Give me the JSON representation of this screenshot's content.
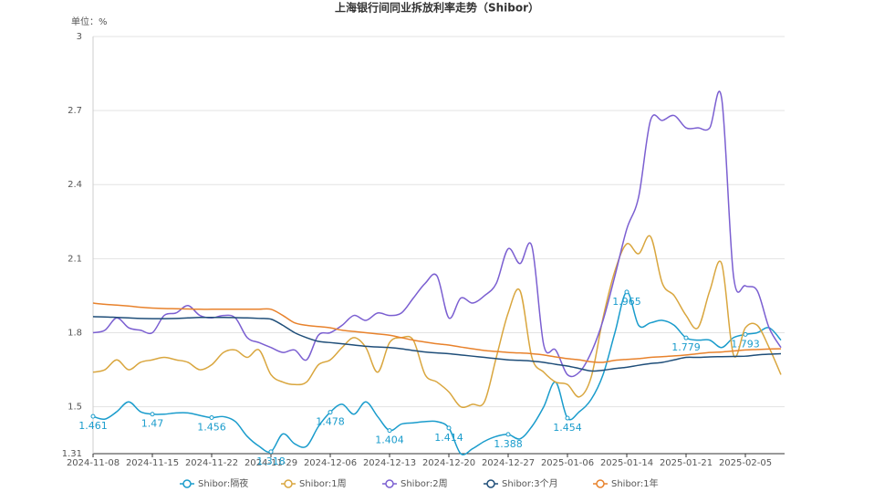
{
  "chart_data": {
    "type": "line",
    "title": "上海银行间同业拆放利率走势（Shibor）",
    "y_label": "单位：%",
    "categories": [
      "2024-11-08",
      null,
      null,
      null,
      null,
      "2024-11-15",
      null,
      null,
      null,
      null,
      "2024-11-22",
      null,
      null,
      null,
      null,
      "2024-11-29",
      null,
      null,
      null,
      null,
      "2024-12-06",
      null,
      null,
      null,
      null,
      "2024-12-13",
      null,
      null,
      null,
      null,
      "2024-12-20",
      null,
      null,
      null,
      null,
      "2024-12-27",
      null,
      null,
      null,
      null,
      "2025-01-06",
      null,
      null,
      null,
      null,
      "2025-01-14",
      null,
      null,
      null,
      null,
      "2025-01-21",
      null,
      null,
      null,
      null,
      "2025-02-05",
      null,
      null,
      null
    ],
    "ylim": [
      1.31,
      3
    ],
    "yticks": [
      1.31,
      1.5,
      1.8,
      2.1,
      2.4,
      2.7,
      3
    ],
    "grid": true,
    "legend": "bottom",
    "series": [
      {
        "name": "Shibor:隔夜",
        "color": "#1a9ccc",
        "label_interval": 5,
        "values": [
          1.461,
          1.45,
          1.48,
          1.52,
          1.48,
          1.47,
          1.47,
          1.475,
          1.475,
          1.465,
          1.456,
          1.46,
          1.44,
          1.38,
          1.34,
          1.318,
          1.39,
          1.35,
          1.34,
          1.42,
          1.478,
          1.51,
          1.47,
          1.52,
          1.46,
          1.404,
          1.43,
          1.435,
          1.44,
          1.44,
          1.414,
          1.31,
          1.33,
          1.36,
          1.38,
          1.388,
          1.37,
          1.42,
          1.5,
          1.6,
          1.454,
          1.48,
          1.53,
          1.63,
          1.8,
          1.965,
          1.83,
          1.84,
          1.85,
          1.83,
          1.779,
          1.77,
          1.77,
          1.74,
          1.78,
          1.793,
          1.8,
          1.82,
          1.77
        ]
      },
      {
        "name": "Shibor:1周",
        "color": "#d9a63e",
        "values": [
          1.64,
          1.65,
          1.69,
          1.65,
          1.68,
          1.69,
          1.7,
          1.69,
          1.68,
          1.65,
          1.67,
          1.72,
          1.73,
          1.7,
          1.73,
          1.63,
          1.6,
          1.59,
          1.6,
          1.67,
          1.69,
          1.74,
          1.78,
          1.74,
          1.64,
          1.76,
          1.78,
          1.77,
          1.63,
          1.6,
          1.56,
          1.5,
          1.51,
          1.52,
          1.7,
          1.88,
          1.97,
          1.7,
          1.64,
          1.6,
          1.59,
          1.54,
          1.62,
          1.86,
          2.05,
          2.16,
          2.12,
          2.19,
          2.0,
          1.95,
          1.87,
          1.82,
          1.97,
          2.08,
          1.71,
          1.82,
          1.83,
          1.74,
          1.63
        ]
      },
      {
        "name": "Shibor:2周",
        "color": "#7b5fd1",
        "values": [
          1.8,
          1.81,
          1.86,
          1.82,
          1.81,
          1.8,
          1.87,
          1.88,
          1.91,
          1.87,
          1.86,
          1.87,
          1.86,
          1.78,
          1.76,
          1.74,
          1.72,
          1.73,
          1.69,
          1.79,
          1.8,
          1.83,
          1.87,
          1.85,
          1.88,
          1.87,
          1.88,
          1.94,
          2.0,
          2.03,
          1.86,
          1.94,
          1.92,
          1.95,
          2.0,
          2.14,
          2.08,
          2.15,
          1.75,
          1.73,
          1.63,
          1.64,
          1.72,
          1.85,
          2.03,
          2.22,
          2.35,
          2.66,
          2.66,
          2.68,
          2.63,
          2.63,
          2.63,
          2.75,
          2.03,
          1.99,
          1.97,
          1.82,
          1.74
        ]
      },
      {
        "name": "Shibor:3个月",
        "color": "#1f4e79",
        "values": [
          1.865,
          1.864,
          1.862,
          1.86,
          1.858,
          1.857,
          1.857,
          1.858,
          1.86,
          1.862,
          1.862,
          1.862,
          1.861,
          1.86,
          1.858,
          1.855,
          1.83,
          1.8,
          1.78,
          1.765,
          1.76,
          1.755,
          1.75,
          1.745,
          1.742,
          1.74,
          1.735,
          1.728,
          1.722,
          1.718,
          1.715,
          1.71,
          1.705,
          1.7,
          1.695,
          1.69,
          1.688,
          1.685,
          1.68,
          1.672,
          1.665,
          1.655,
          1.645,
          1.648,
          1.655,
          1.66,
          1.668,
          1.675,
          1.68,
          1.69,
          1.7,
          1.7,
          1.702,
          1.703,
          1.704,
          1.705,
          1.71,
          1.713,
          1.715
        ]
      },
      {
        "name": "Shibor:1年",
        "color": "#e8822c",
        "values": [
          1.92,
          1.915,
          1.912,
          1.908,
          1.903,
          1.9,
          1.898,
          1.897,
          1.896,
          1.895,
          1.895,
          1.895,
          1.895,
          1.895,
          1.895,
          1.895,
          1.87,
          1.84,
          1.83,
          1.825,
          1.82,
          1.81,
          1.805,
          1.8,
          1.795,
          1.79,
          1.78,
          1.77,
          1.762,
          1.755,
          1.75,
          1.742,
          1.735,
          1.728,
          1.724,
          1.72,
          1.718,
          1.715,
          1.71,
          1.702,
          1.695,
          1.69,
          1.682,
          1.68,
          1.688,
          1.692,
          1.695,
          1.7,
          1.703,
          1.706,
          1.71,
          1.715,
          1.72,
          1.722,
          1.726,
          1.73,
          1.732,
          1.734,
          1.735
        ]
      }
    ]
  }
}
